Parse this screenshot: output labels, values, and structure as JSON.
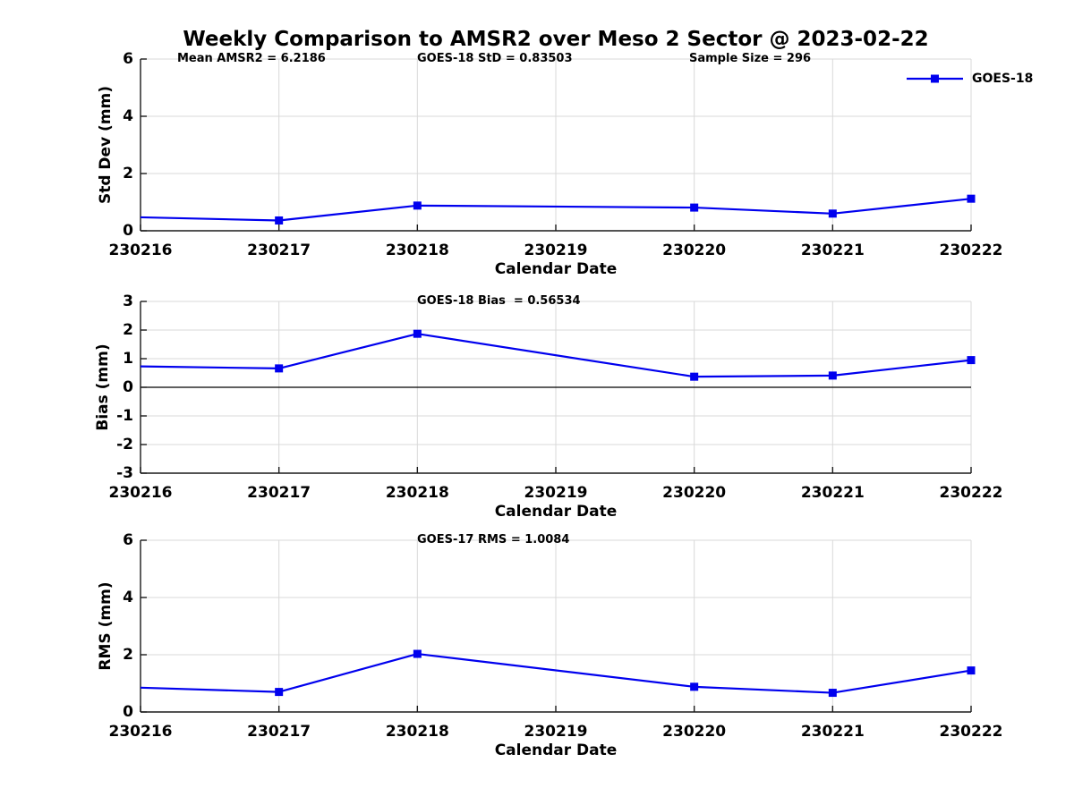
{
  "figure_title": "Weekly Comparison to AMSR2 over Meso 2 Sector @ 2023-02-22",
  "legend": {
    "label": "GOES-18"
  },
  "colors": {
    "line": "#0000EE",
    "axis": "#1a1a1a",
    "grid": "#d9d9d9",
    "zero_line": "#000000",
    "text": "#000000"
  },
  "chart_data": [
    {
      "type": "line",
      "ylabel": "Std Dev (mm)",
      "xlabel": "Calendar Date",
      "annotations": [
        "Mean AMSR2 = 6.2186",
        "GOES-18 StD = 0.83503",
        "Sample Size = 296"
      ],
      "categories": [
        "230216",
        "230217",
        "230218",
        "230219",
        "230220",
        "230221",
        "230222"
      ],
      "ylim": [
        0,
        6
      ],
      "yticks": [
        0,
        2,
        4,
        6
      ],
      "grid": true,
      "zero_line": false,
      "legend_entries": [
        "GOES-18"
      ],
      "series": [
        {
          "name": "GOES-18",
          "marker": "square",
          "points": [
            {
              "x": "230216",
              "y": 0.47,
              "marker": false
            },
            {
              "x": "230217",
              "y": 0.36,
              "marker": true
            },
            {
              "x": "230218",
              "y": 0.88,
              "marker": true
            },
            {
              "x": "230220",
              "y": 0.81,
              "marker": true
            },
            {
              "x": "230221",
              "y": 0.6,
              "marker": true
            },
            {
              "x": "230222",
              "y": 1.12,
              "marker": true
            }
          ]
        }
      ]
    },
    {
      "type": "line",
      "title": "GOES-18 Bias  = 0.56534",
      "ylabel": "Bias (mm)",
      "xlabel": "Calendar Date",
      "categories": [
        "230216",
        "230217",
        "230218",
        "230219",
        "230220",
        "230221",
        "230222"
      ],
      "ylim": [
        -3,
        3
      ],
      "yticks": [
        -3,
        -2,
        -1,
        0,
        1,
        2,
        3
      ],
      "grid": true,
      "zero_line": true,
      "series": [
        {
          "name": "GOES-18",
          "marker": "square",
          "points": [
            {
              "x": "230216",
              "y": 0.73,
              "marker": false
            },
            {
              "x": "230217",
              "y": 0.66,
              "marker": true
            },
            {
              "x": "230218",
              "y": 1.87,
              "marker": true
            },
            {
              "x": "230220",
              "y": 0.37,
              "marker": true
            },
            {
              "x": "230221",
              "y": 0.41,
              "marker": true
            },
            {
              "x": "230222",
              "y": 0.95,
              "marker": true
            }
          ]
        }
      ]
    },
    {
      "type": "line",
      "title": "GOES-17 RMS = 1.0084",
      "ylabel": "RMS (mm)",
      "xlabel": "Calendar Date",
      "categories": [
        "230216",
        "230217",
        "230218",
        "230219",
        "230220",
        "230221",
        "230222"
      ],
      "ylim": [
        0,
        6
      ],
      "yticks": [
        0,
        2,
        4,
        6
      ],
      "grid": true,
      "zero_line": false,
      "series": [
        {
          "name": "GOES-18",
          "marker": "square",
          "points": [
            {
              "x": "230216",
              "y": 0.85,
              "marker": false
            },
            {
              "x": "230217",
              "y": 0.7,
              "marker": true
            },
            {
              "x": "230218",
              "y": 2.03,
              "marker": true
            },
            {
              "x": "230220",
              "y": 0.88,
              "marker": true
            },
            {
              "x": "230221",
              "y": 0.67,
              "marker": true
            },
            {
              "x": "230222",
              "y": 1.45,
              "marker": true
            }
          ]
        }
      ]
    }
  ]
}
